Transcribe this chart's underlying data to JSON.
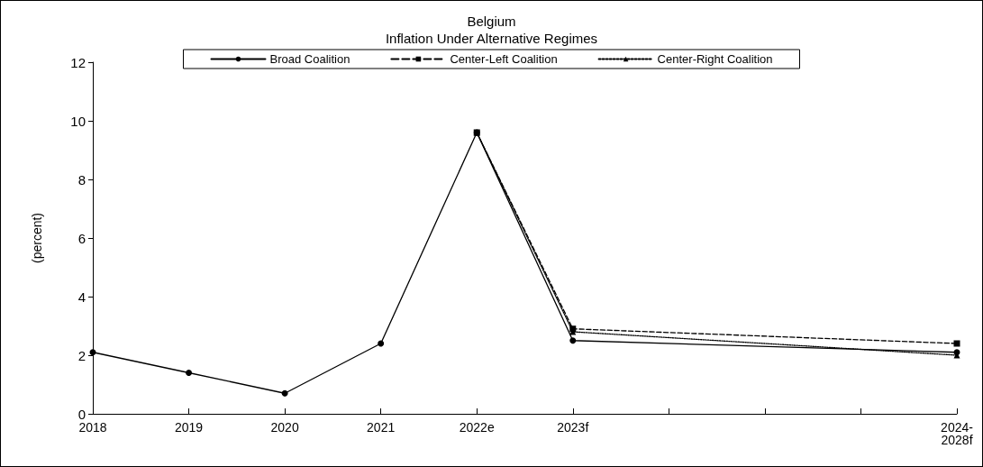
{
  "chart_data": {
    "type": "line",
    "title": "Belgium",
    "subtitle": "Inflation Under Alternative Regimes",
    "ylabel": "(percent)",
    "categories": [
      "2018",
      "2019",
      "2020",
      "2021",
      "2022e",
      "2023f",
      null,
      null,
      null,
      "2024-2028f"
    ],
    "series": [
      {
        "name": "Broad Coalition",
        "color": "#000000",
        "marker": "circle",
        "line_style": "solid",
        "values": [
          2.1,
          1.4,
          0.7,
          2.4,
          9.6,
          2.5,
          null,
          null,
          null,
          2.1
        ]
      },
      {
        "name": "Center-Left Coalition",
        "color": "#000000",
        "marker": "square",
        "line_style": "dashed",
        "values": [
          null,
          null,
          null,
          null,
          9.6,
          2.9,
          null,
          null,
          null,
          2.4
        ]
      },
      {
        "name": "Center-Right Coalition",
        "color": "#000000",
        "marker": "triangle",
        "line_style": "dotted",
        "values": [
          null,
          null,
          null,
          null,
          9.6,
          2.8,
          null,
          null,
          null,
          2.0
        ]
      }
    ],
    "ylim": [
      0,
      12
    ],
    "yticks": [
      0,
      2,
      4,
      6,
      8,
      10,
      12
    ],
    "grid": false,
    "legend": "top"
  }
}
